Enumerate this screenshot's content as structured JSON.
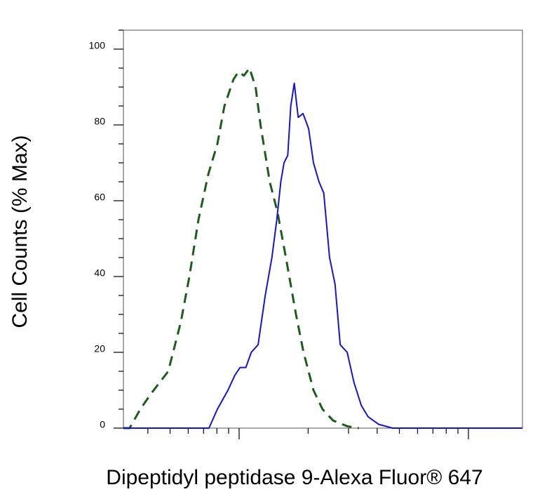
{
  "chart_data": {
    "type": "line",
    "xlabel": "Dipeptidyl peptidase 9-Alexa Fluor® 647",
    "ylabel": "Cell Counts (% Max)",
    "xscale": "log",
    "xlim": [
      31.3,
      1720
    ],
    "xticks": [
      40,
      50,
      60,
      70,
      80,
      90,
      100,
      200,
      300,
      400,
      500,
      600,
      700,
      800,
      900,
      1000
    ],
    "ylim": [
      0,
      105
    ],
    "yticks": [
      0,
      20,
      40,
      60,
      80,
      100
    ],
    "yminor_ticks": [
      5,
      10,
      15,
      25,
      30,
      35,
      45,
      50,
      55,
      65,
      70,
      75,
      85,
      90,
      95,
      105
    ],
    "series": [
      {
        "color": "#1d5c1d",
        "dash": "dashed",
        "x": [
          31.3,
          33.3,
          37.1,
          41.2,
          49.1,
          55.7,
          60.7,
          66.5,
          73.4,
          80.4,
          86.3,
          94.5,
          99.3,
          105,
          111,
          118,
          124,
          136,
          147,
          160,
          177,
          191,
          211,
          231,
          257,
          296,
          333
        ],
        "values": [
          0,
          0,
          5,
          9,
          15,
          28,
          40,
          55,
          67,
          75,
          85,
          92,
          94,
          93,
          95,
          90,
          80,
          65,
          57,
          45,
          30,
          20,
          10,
          5,
          2,
          0.5,
          0
        ]
      },
      {
        "color": "#1414d2",
        "dash": "solid",
        "x": [
          31.3,
          73.9,
          80.4,
          89.4,
          95.9,
          101,
          107,
          113,
          121,
          130,
          139,
          146,
          152,
          157,
          163,
          168,
          174,
          181,
          190,
          201,
          211,
          223,
          234,
          248,
          262,
          276,
          296,
          317,
          341,
          365,
          406,
          467,
          1720
        ],
        "values": [
          0,
          0,
          5,
          10,
          14,
          16,
          16,
          20,
          22,
          35,
          45,
          55,
          65,
          70,
          72,
          85,
          91,
          82,
          83,
          79,
          70,
          65,
          62,
          45,
          38,
          22,
          20,
          12,
          6,
          3,
          1,
          0,
          0
        ]
      }
    ]
  }
}
